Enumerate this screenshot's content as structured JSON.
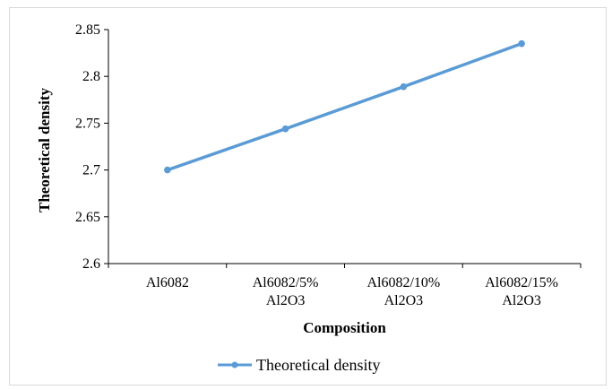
{
  "chart_data": {
    "type": "line",
    "title": "",
    "xlabel": "Composition",
    "ylabel": "Theoretical density",
    "ylim": [
      2.6,
      2.85
    ],
    "yticks": [
      "2.6",
      "2.65",
      "2.7",
      "2.75",
      "2.8",
      "2.85"
    ],
    "categories": [
      [
        "Al6082"
      ],
      [
        "Al6082/5%",
        "Al2O3"
      ],
      [
        "Al6082/10%",
        "Al2O3"
      ],
      [
        "Al6082/15%",
        "Al2O3"
      ]
    ],
    "series": [
      {
        "name": "Theoretical density",
        "values": [
          2.7,
          2.744,
          2.789,
          2.835
        ],
        "color": "#5B9BD5"
      }
    ],
    "grid": false,
    "legend_position": "bottom"
  }
}
